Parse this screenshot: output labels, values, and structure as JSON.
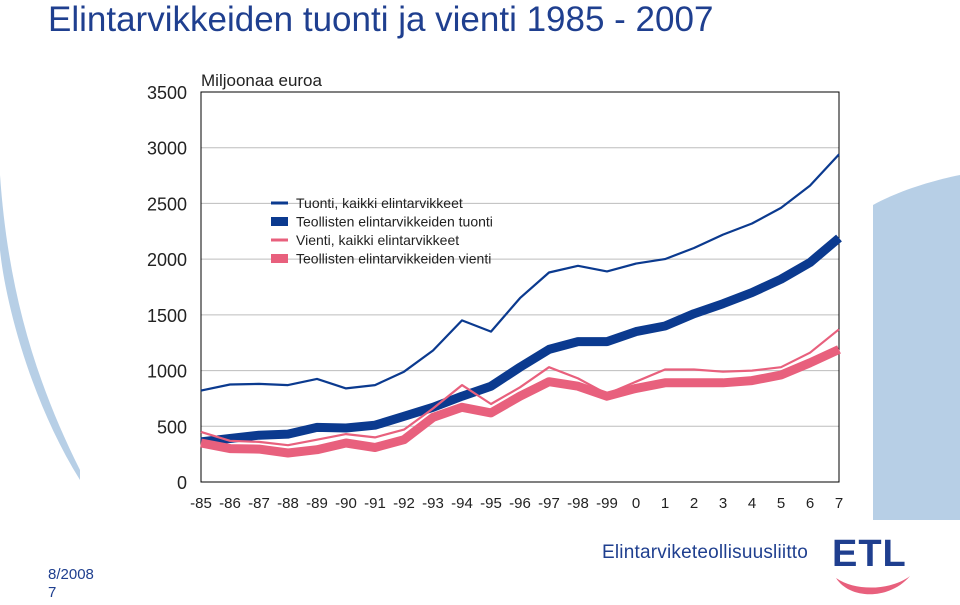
{
  "slide": {
    "title": "Elintarvikkeiden tuonti ja vienti 1985 - 2007",
    "footer_date": "8/2008",
    "footer_page": "7",
    "brand_name": "Elintarviketeollisuusliitto",
    "logo_text": "ETL"
  },
  "colors": {
    "title": "#1f3f8f",
    "import_color": "#0b3a8f",
    "export_color": "#e8607d",
    "decor_blue": "#b7cfe6"
  },
  "chart_data": {
    "type": "line",
    "unit_label": "Miljoonaa euroa",
    "categories": [
      "-85",
      "-86",
      "-87",
      "-88",
      "-89",
      "-90",
      "-91",
      "-92",
      "-93",
      "-94",
      "-95",
      "-96",
      "-97",
      "-98",
      "-99",
      "0",
      "1",
      "2",
      "3",
      "4",
      "5",
      "6",
      "7"
    ],
    "ylim": [
      0,
      3500
    ],
    "yticks": [
      0,
      500,
      1000,
      1500,
      2000,
      2500,
      3000,
      3500
    ],
    "grid": true,
    "legend_position": "top-left",
    "series": [
      {
        "name": "Tuonti, kaikki elintarvikkeet",
        "color": "#0b3a8f",
        "style": "thin",
        "values": [
          820,
          875,
          880,
          870,
          925,
          840,
          870,
          990,
          1180,
          1450,
          1350,
          1650,
          1880,
          1940,
          1890,
          1960,
          2000,
          2100,
          2220,
          2320,
          2460,
          2660,
          2940
        ]
      },
      {
        "name": "Teollisten elintarvikkeiden tuonti",
        "color": "#0b3a8f",
        "style": "thick",
        "values": [
          360,
          390,
          420,
          430,
          490,
          485,
          510,
          590,
          670,
          770,
          860,
          1030,
          1190,
          1260,
          1260,
          1350,
          1400,
          1510,
          1600,
          1700,
          1820,
          1970,
          2190
        ]
      },
      {
        "name": "Vienti, kaikki elintarvikkeet",
        "color": "#e8607d",
        "style": "thin",
        "values": [
          450,
          370,
          360,
          330,
          380,
          430,
          400,
          470,
          660,
          870,
          700,
          850,
          1030,
          930,
          790,
          900,
          1010,
          1010,
          990,
          1000,
          1030,
          1160,
          1370
        ]
      },
      {
        "name": "Teollisten elintarvikkeiden vienti",
        "color": "#e8607d",
        "style": "thick",
        "values": [
          350,
          300,
          295,
          260,
          290,
          350,
          310,
          380,
          580,
          670,
          620,
          770,
          900,
          860,
          770,
          840,
          890,
          890,
          890,
          910,
          960,
          1070,
          1190
        ]
      }
    ]
  }
}
